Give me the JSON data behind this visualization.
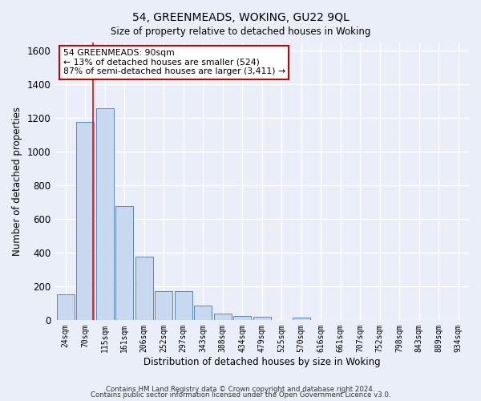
{
  "title": "54, GREENMEADS, WOKING, GU22 9QL",
  "subtitle": "Size of property relative to detached houses in Woking",
  "xlabel": "Distribution of detached houses by size in Woking",
  "ylabel": "Number of detached properties",
  "categories": [
    "24sqm",
    "70sqm",
    "115sqm",
    "161sqm",
    "206sqm",
    "252sqm",
    "297sqm",
    "343sqm",
    "388sqm",
    "434sqm",
    "479sqm",
    "525sqm",
    "570sqm",
    "616sqm",
    "661sqm",
    "707sqm",
    "752sqm",
    "798sqm",
    "843sqm",
    "889sqm",
    "934sqm"
  ],
  "values": [
    150,
    1175,
    1255,
    675,
    375,
    170,
    170,
    85,
    35,
    25,
    20,
    0,
    15,
    0,
    0,
    0,
    0,
    0,
    0,
    0,
    0
  ],
  "bar_color": "#c8d8f0",
  "bar_edge_color": "#5588cc",
  "bg_color": "#eaeef8",
  "grid_color": "#ffffff",
  "red_line_x": 1.42,
  "annotation_text": "54 GREENMEADS: 90sqm\n← 13% of detached houses are smaller (524)\n87% of semi-detached houses are larger (3,411) →",
  "annotation_box_color": "#ffffff",
  "annotation_box_edge": "#cc0000",
  "ylim": [
    0,
    1650
  ],
  "footnote1": "Contains HM Land Registry data © Crown copyright and database right 2024.",
  "footnote2": "Contains public sector information licensed under the Open Government Licence v3.0."
}
